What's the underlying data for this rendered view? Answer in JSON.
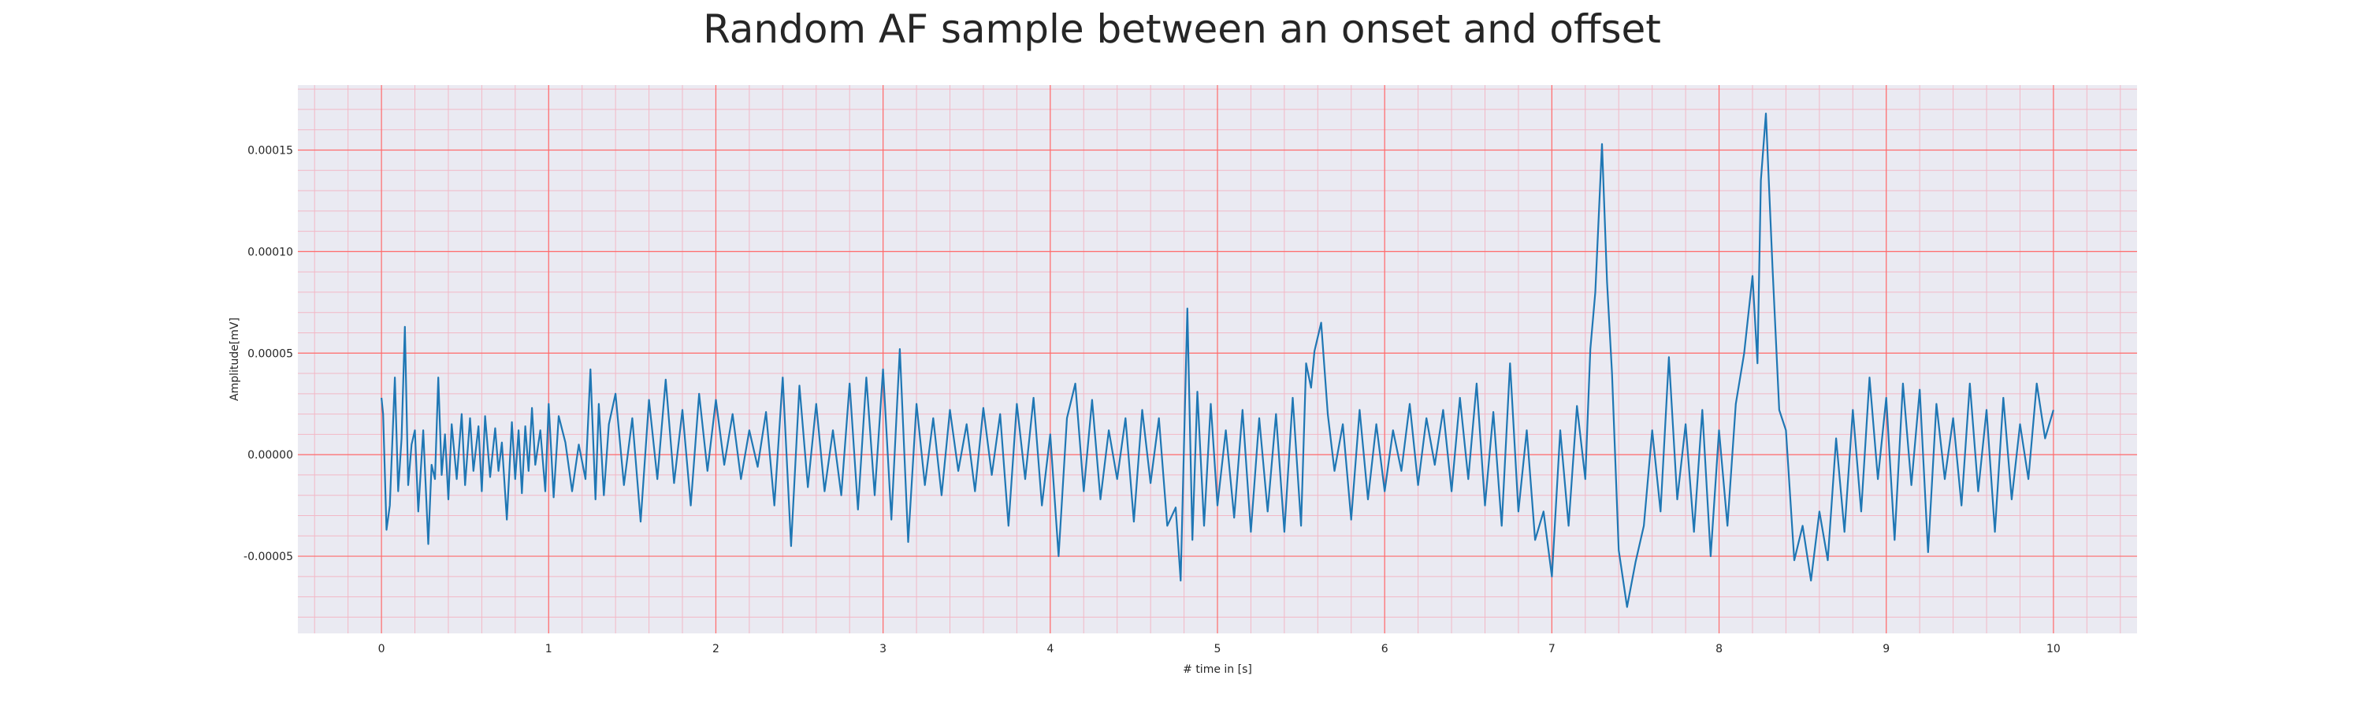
{
  "chart_data": {
    "type": "line",
    "title": "Random AF sample between an onset and offset",
    "xlabel": "# time in [s]",
    "ylabel": "Amplitude[mV]",
    "xlim": [
      -0.5,
      10.5
    ],
    "ylim": [
      -8.8e-05,
      0.000182
    ],
    "xticks": [
      0,
      1,
      2,
      3,
      4,
      5,
      6,
      7,
      8,
      9,
      10
    ],
    "xtick_labels": [
      "0",
      "1",
      "2",
      "3",
      "4",
      "5",
      "6",
      "7",
      "8",
      "9",
      "10"
    ],
    "yticks": [
      -5e-05,
      0.0,
      5e-05,
      0.0001,
      0.00015
    ],
    "ytick_labels": [
      "-0.00005",
      "0.00000",
      "0.00005",
      "0.00010",
      "0.00015"
    ],
    "grid": true,
    "minor_grid": true,
    "colors": {
      "line": "#1f77b4",
      "major_grid": "#ff6b6b",
      "minor_grid": "#f2b8c6",
      "background": "#eaeaf2"
    },
    "series": [
      {
        "x": [
          0,
          0.01,
          0.03,
          0.05,
          0.08,
          0.1,
          0.12,
          0.14,
          0.16,
          0.18,
          0.2,
          0.22,
          0.25,
          0.28,
          0.3,
          0.32,
          0.34,
          0.36,
          0.38,
          0.4,
          0.42,
          0.45,
          0.48,
          0.5,
          0.53,
          0.55,
          0.58,
          0.6,
          0.62,
          0.65,
          0.68,
          0.7,
          0.72,
          0.75,
          0.78,
          0.8,
          0.82,
          0.84,
          0.86,
          0.88,
          0.9,
          0.92,
          0.95,
          0.98,
          1.0,
          1.03,
          1.06,
          1.1,
          1.14,
          1.18,
          1.22,
          1.25,
          1.28,
          1.3,
          1.33,
          1.36,
          1.4,
          1.45,
          1.5,
          1.55,
          1.6,
          1.65,
          1.7,
          1.75,
          1.8,
          1.85,
          1.9,
          1.95,
          2.0,
          2.05,
          2.1,
          2.15,
          2.2,
          2.25,
          2.3,
          2.35,
          2.4,
          2.45,
          2.5,
          2.55,
          2.6,
          2.65,
          2.7,
          2.75,
          2.8,
          2.85,
          2.9,
          2.95,
          3.0,
          3.05,
          3.1,
          3.15,
          3.2,
          3.25,
          3.3,
          3.35,
          3.4,
          3.45,
          3.5,
          3.55,
          3.6,
          3.65,
          3.7,
          3.75,
          3.8,
          3.85,
          3.9,
          3.95,
          4.0,
          4.05,
          4.1,
          4.15,
          4.2,
          4.25,
          4.3,
          4.35,
          4.4,
          4.45,
          4.5,
          4.55,
          4.6,
          4.65,
          4.7,
          4.75,
          4.78,
          4.82,
          4.85,
          4.88,
          4.92,
          4.96,
          5.0,
          5.05,
          5.1,
          5.15,
          5.2,
          5.25,
          5.3,
          5.35,
          5.4,
          5.45,
          5.5,
          5.53,
          5.56,
          5.58,
          5.62,
          5.66,
          5.7,
          5.75,
          5.8,
          5.85,
          5.9,
          5.95,
          6.0,
          6.05,
          6.1,
          6.15,
          6.2,
          6.25,
          6.3,
          6.35,
          6.4,
          6.45,
          6.5,
          6.55,
          6.6,
          6.65,
          6.7,
          6.75,
          6.8,
          6.85,
          6.9,
          6.95,
          7.0,
          7.05,
          7.1,
          7.15,
          7.2,
          7.23,
          7.26,
          7.3,
          7.33,
          7.36,
          7.4,
          7.45,
          7.5,
          7.55,
          7.6,
          7.65,
          7.7,
          7.75,
          7.8,
          7.85,
          7.9,
          7.95,
          8.0,
          8.05,
          8.1,
          8.15,
          8.2,
          8.23,
          8.25,
          8.28,
          8.32,
          8.36,
          8.4,
          8.45,
          8.5,
          8.55,
          8.6,
          8.65,
          8.7,
          8.75,
          8.8,
          8.85,
          8.9,
          8.95,
          9.0,
          9.05,
          9.1,
          9.15,
          9.2,
          9.25,
          9.3,
          9.35,
          9.4,
          9.45,
          9.5,
          9.55,
          9.6,
          9.65,
          9.7,
          9.75,
          9.8,
          9.85,
          9.9,
          9.95,
          10.0
        ],
        "y": [
          2.8e-05,
          2e-05,
          -3.7e-05,
          -2.5e-05,
          3.8e-05,
          -1.8e-05,
          8e-06,
          6.3e-05,
          -1.5e-05,
          5e-06,
          1.2e-05,
          -2.8e-05,
          1.2e-05,
          -4.4e-05,
          -5e-06,
          -1.2e-05,
          3.8e-05,
          -1e-05,
          1e-05,
          -2.2e-05,
          1.5e-05,
          -1.2e-05,
          2e-05,
          -1.5e-05,
          1.8e-05,
          -8e-06,
          1.4e-05,
          -1.8e-05,
          1.9e-05,
          -1.1e-05,
          1.3e-05,
          -8e-06,
          6e-06,
          -3.2e-05,
          1.6e-05,
          -1.2e-05,
          1.2e-05,
          -1.9e-05,
          1.4e-05,
          -8e-06,
          2.3e-05,
          -5e-06,
          1.2e-05,
          -1.8e-05,
          2.5e-05,
          -2.1e-05,
          1.9e-05,
          6e-06,
          -1.8e-05,
          5e-06,
          -1.2e-05,
          4.2e-05,
          -2.2e-05,
          2.5e-05,
          -2e-05,
          1.5e-05,
          3e-05,
          -1.5e-05,
          1.8e-05,
          -3.3e-05,
          2.7e-05,
          -1.2e-05,
          3.7e-05,
          -1.4e-05,
          2.2e-05,
          -2.5e-05,
          3e-05,
          -8e-06,
          2.7e-05,
          -5e-06,
          2e-05,
          -1.2e-05,
          1.2e-05,
          -6e-06,
          2.1e-05,
          -2.5e-05,
          3.8e-05,
          -4.5e-05,
          3.4e-05,
          -1.6e-05,
          2.5e-05,
          -1.8e-05,
          1.2e-05,
          -2e-05,
          3.5e-05,
          -2.7e-05,
          3.8e-05,
          -2e-05,
          4.2e-05,
          -3.2e-05,
          5.2e-05,
          -4.3e-05,
          2.5e-05,
          -1.5e-05,
          1.8e-05,
          -2e-05,
          2.2e-05,
          -8e-06,
          1.5e-05,
          -1.8e-05,
          2.3e-05,
          -1e-05,
          2e-05,
          -3.5e-05,
          2.5e-05,
          -1.2e-05,
          2.8e-05,
          -2.5e-05,
          1e-05,
          -5e-05,
          1.8e-05,
          3.5e-05,
          -1.8e-05,
          2.7e-05,
          -2.2e-05,
          1.2e-05,
          -1.2e-05,
          1.8e-05,
          -3.3e-05,
          2.2e-05,
          -1.4e-05,
          1.8e-05,
          -3.5e-05,
          -2.6e-05,
          -6.2e-05,
          7.2e-05,
          -4.2e-05,
          3.1e-05,
          -3.5e-05,
          2.5e-05,
          -2.5e-05,
          1.2e-05,
          -3.1e-05,
          2.2e-05,
          -3.8e-05,
          1.8e-05,
          -2.8e-05,
          2e-05,
          -3.8e-05,
          2.8e-05,
          -3.5e-05,
          4.5e-05,
          3.3e-05,
          5.1e-05,
          6.5e-05,
          2e-05,
          -8e-06,
          1.5e-05,
          -3.2e-05,
          2.2e-05,
          -2.2e-05,
          1.5e-05,
          -1.8e-05,
          1.2e-05,
          -8e-06,
          2.5e-05,
          -1.5e-05,
          1.8e-05,
          -5e-06,
          2.2e-05,
          -1.8e-05,
          2.8e-05,
          -1.2e-05,
          3.5e-05,
          -2.5e-05,
          2.1e-05,
          -3.5e-05,
          4.5e-05,
          -2.8e-05,
          1.2e-05,
          -4.2e-05,
          -2.8e-05,
          -6e-05,
          1.2e-05,
          -3.5e-05,
          2.4e-05,
          -1.2e-05,
          5.2e-05,
          8e-05,
          0.000153,
          8.5e-05,
          4e-05,
          -4.7e-05,
          -7.5e-05,
          -5.3e-05,
          -3.5e-05,
          1.2e-05,
          -2.8e-05,
          4.8e-05,
          -2.2e-05,
          1.5e-05,
          -3.8e-05,
          2.2e-05,
          -5e-05,
          1.2e-05,
          -3.5e-05,
          2.5e-05,
          5e-05,
          8.8e-05,
          4.5e-05,
          0.000135,
          0.000168,
          9.2e-05,
          2.2e-05,
          1.2e-05,
          -5.2e-05,
          -3.5e-05,
          -6.2e-05,
          -2.8e-05,
          -5.2e-05,
          8e-06,
          -3.8e-05,
          2.2e-05,
          -2.8e-05,
          3.8e-05,
          -1.2e-05,
          2.8e-05,
          -4.2e-05,
          3.5e-05,
          -1.5e-05,
          3.2e-05,
          -4.8e-05,
          2.5e-05,
          -1.2e-05,
          1.8e-05,
          -2.5e-05,
          3.5e-05,
          -1.8e-05,
          2.2e-05,
          -3.8e-05,
          2.8e-05,
          -2.2e-05,
          1.5e-05,
          -1.2e-05,
          3.5e-05,
          8e-06,
          2.2e-05
        ]
      }
    ]
  }
}
